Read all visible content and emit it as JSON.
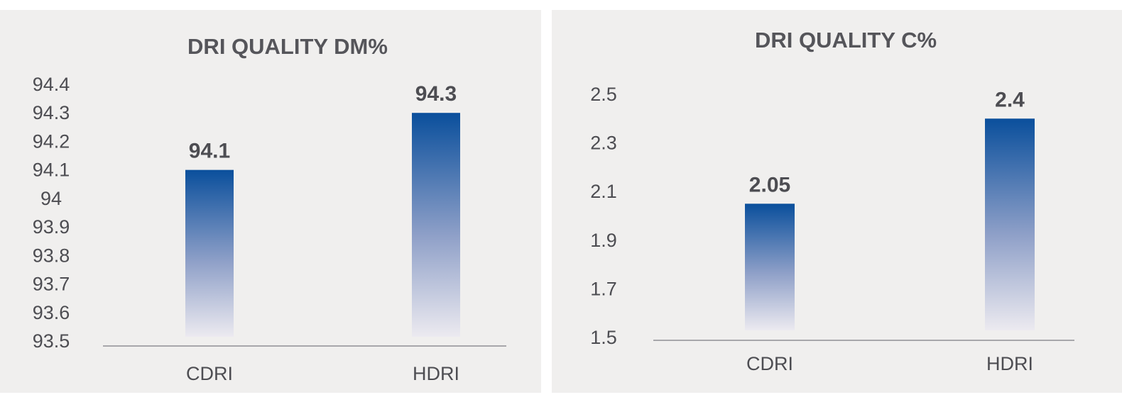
{
  "chart_data": [
    {
      "type": "bar",
      "title": "DRI QUALITY DM%",
      "categories": [
        "CDRI",
        "HDRI"
      ],
      "values": [
        94.1,
        94.3
      ],
      "data_labels": [
        "94.1",
        "94.3"
      ],
      "ylim": [
        93.5,
        94.4
      ],
      "yticks": [
        93.5,
        93.6,
        93.7,
        93.8,
        93.9,
        94,
        94.1,
        94.2,
        94.3,
        94.4
      ],
      "ytick_labels": [
        "93.5",
        "93.6",
        "93.7",
        "93.8",
        "93.9",
        "94",
        "94.1",
        "94.2",
        "94.3",
        "94.4"
      ],
      "xlabel": "",
      "ylabel": "",
      "grid": false,
      "legend": "none",
      "bar_color_top": "#0a4f9c",
      "bar_color_bottom": "#eceaf0"
    },
    {
      "type": "bar",
      "title": "DRI QUALITY C%",
      "categories": [
        "CDRI",
        "HDRI"
      ],
      "values": [
        2.05,
        2.4
      ],
      "data_labels": [
        "2.05",
        "2.4"
      ],
      "ylim": [
        1.5,
        2.5
      ],
      "yticks": [
        1.5,
        1.7,
        1.9,
        2.1,
        2.3,
        2.5
      ],
      "ytick_labels": [
        "1.5",
        "1.7",
        "1.9",
        "2.1",
        "2.3",
        "2.5"
      ],
      "xlabel": "",
      "ylabel": "",
      "grid": false,
      "legend": "none",
      "bar_color_top": "#0a4f9c",
      "bar_color_bottom": "#eceaf0"
    }
  ]
}
